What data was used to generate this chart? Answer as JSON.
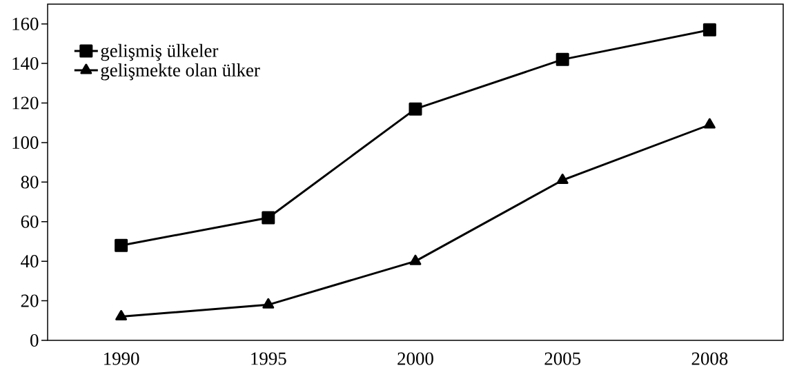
{
  "chart_data": {
    "type": "line",
    "categories": [
      "1990",
      "1995",
      "2000",
      "2005",
      "2008"
    ],
    "series": [
      {
        "name": "gelişmiş ülkeler",
        "color": "#000000",
        "marker": "square",
        "values": [
          48,
          62,
          117,
          142,
          157
        ]
      },
      {
        "name": "gelişmekte olan ülker",
        "color": "#000000",
        "marker": "triangle",
        "values": [
          12,
          18,
          40,
          81,
          109
        ]
      }
    ],
    "ylim": [
      0,
      170
    ],
    "yticks": [
      0,
      20,
      40,
      60,
      80,
      100,
      120,
      140,
      160
    ],
    "grid": false,
    "legend": "top left"
  }
}
